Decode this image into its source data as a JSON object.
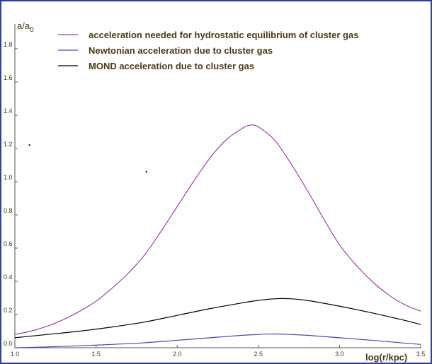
{
  "chart_data": {
    "type": "line",
    "xlabel": "log(r/kpc)",
    "ylabel_main": "a/a",
    "ylabel_sub": "0",
    "xlim": [
      1.0,
      3.5
    ],
    "ylim": [
      0.0,
      1.9
    ],
    "xticks": [
      {
        "value": 1.0,
        "label": "1.0"
      },
      {
        "value": 1.5,
        "label": "1.5"
      },
      {
        "value": 2.0,
        "label": "2.0"
      },
      {
        "value": 2.5,
        "label": "2.5"
      },
      {
        "value": 3.0,
        "label": "3.0"
      },
      {
        "value": 3.5,
        "label": "3.5"
      }
    ],
    "yticks": [
      {
        "value": 0.0,
        "label": "0.0"
      },
      {
        "value": 0.2,
        "label": "0.2"
      },
      {
        "value": 0.4,
        "label": "0.4"
      },
      {
        "value": 0.6,
        "label": "0.6"
      },
      {
        "value": 0.8,
        "label": "0.8"
      },
      {
        "value": 1.0,
        "label": "1.0"
      },
      {
        "value": 1.2,
        "label": "1.2"
      },
      {
        "value": 1.4,
        "label": "1.4"
      },
      {
        "value": 1.6,
        "label": "1.6"
      },
      {
        "value": 1.8,
        "label": "1.8"
      }
    ],
    "legend_position": "top",
    "series": [
      {
        "name": "acceleration needed for hydrostatic equilibrium of cluster gas",
        "color": "#a040a8",
        "x": [
          1.0,
          1.1,
          1.2,
          1.3,
          1.4,
          1.5,
          1.6,
          1.7,
          1.8,
          1.9,
          2.0,
          2.1,
          2.2,
          2.3,
          2.4,
          2.45,
          2.5,
          2.6,
          2.7,
          2.8,
          2.9,
          3.0,
          3.1,
          3.2,
          3.3,
          3.4,
          3.5
        ],
        "y": [
          0.08,
          0.1,
          0.13,
          0.17,
          0.22,
          0.28,
          0.36,
          0.45,
          0.56,
          0.7,
          0.85,
          1.0,
          1.14,
          1.25,
          1.32,
          1.34,
          1.33,
          1.25,
          1.11,
          0.95,
          0.78,
          0.62,
          0.5,
          0.4,
          0.32,
          0.26,
          0.22
        ]
      },
      {
        "name": "Newtonian acceleration due to cluster gas",
        "color": "#5a3fb0",
        "x": [
          1.0,
          1.2,
          1.4,
          1.6,
          1.8,
          2.0,
          2.2,
          2.4,
          2.5,
          2.6,
          2.7,
          2.8,
          3.0,
          3.2,
          3.4,
          3.5
        ],
        "y": [
          0.0,
          0.005,
          0.012,
          0.02,
          0.03,
          0.045,
          0.06,
          0.075,
          0.08,
          0.083,
          0.08,
          0.075,
          0.06,
          0.045,
          0.028,
          0.02
        ]
      },
      {
        "name": "MOND acceleration due to cluster gas",
        "color": "#000000",
        "x": [
          1.0,
          1.2,
          1.4,
          1.6,
          1.8,
          2.0,
          2.2,
          2.4,
          2.5,
          2.6,
          2.7,
          2.8,
          3.0,
          3.2,
          3.4,
          3.5
        ],
        "y": [
          0.06,
          0.08,
          0.1,
          0.125,
          0.155,
          0.195,
          0.235,
          0.27,
          0.285,
          0.295,
          0.295,
          0.285,
          0.25,
          0.21,
          0.165,
          0.14
        ]
      }
    ],
    "stray_marks": [
      {
        "x": 1.09,
        "y": 1.22
      },
      {
        "x": 1.81,
        "y": 1.06
      }
    ]
  }
}
